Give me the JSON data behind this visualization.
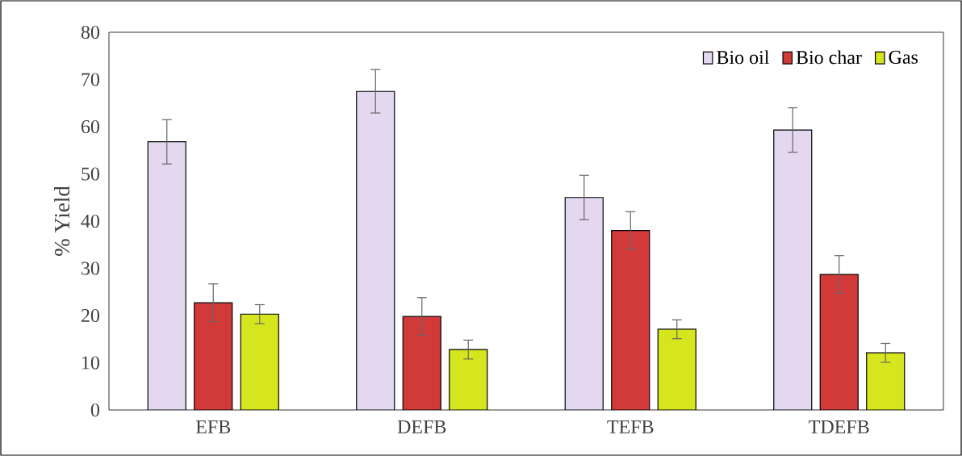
{
  "chart_data": {
    "type": "bar",
    "ylabel": "% Yield",
    "categories": [
      "EFB",
      "DEFB",
      "TEFB",
      "TDEFB"
    ],
    "series": [
      {
        "name": "Bio oil",
        "color": "#e4d8f0",
        "values": [
          56.8,
          67.5,
          45,
          59.3
        ],
        "errors": [
          4.7,
          4.6,
          4.7,
          4.7
        ]
      },
      {
        "name": "Bio char",
        "color": "#d23a3a",
        "values": [
          22.7,
          19.8,
          38,
          28.7
        ],
        "errors": [
          4,
          4,
          4,
          4
        ]
      },
      {
        "name": "Gas",
        "color": "#d6e61e",
        "values": [
          20.3,
          12.8,
          17.1,
          12.1
        ],
        "errors": [
          2,
          2,
          2,
          2
        ]
      }
    ],
    "ylim": [
      0,
      80
    ],
    "yticks": [
      0,
      10,
      20,
      30,
      40,
      50,
      60,
      70,
      80
    ],
    "legend": "top right"
  }
}
